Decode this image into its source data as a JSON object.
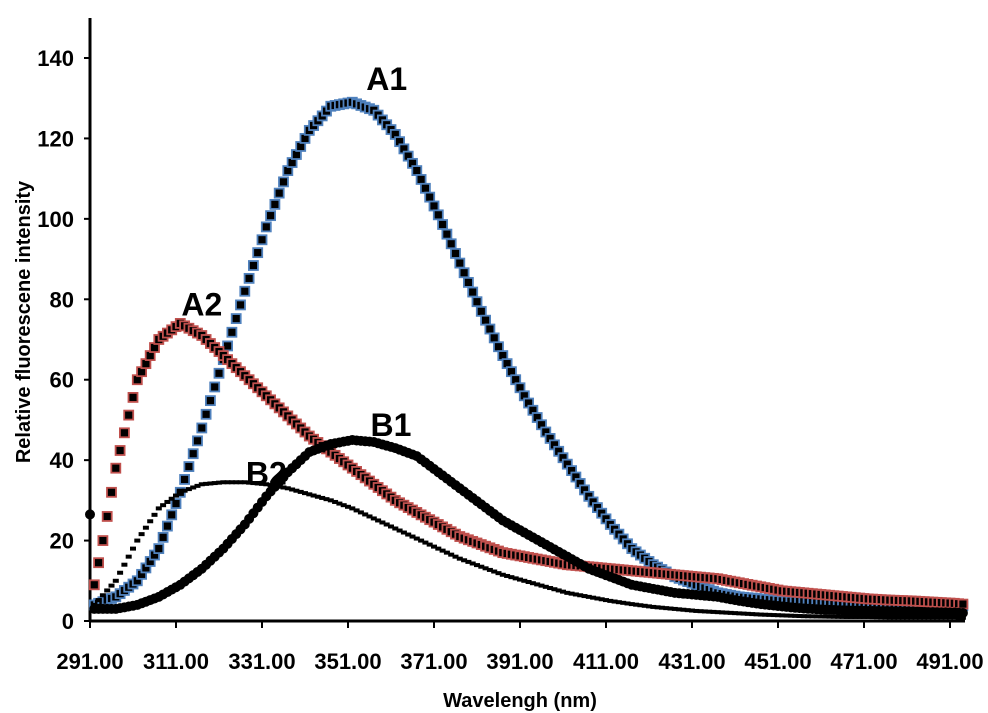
{
  "chart_data": {
    "type": "scatter",
    "title": "",
    "xlabel": "Wavelengh (nm)",
    "ylabel": "Relative fluorescene intensity",
    "xlim": [
      291.0,
      495.0
    ],
    "ylim": [
      0,
      150
    ],
    "x_ticks": [
      "291.00",
      "311.00",
      "331.00",
      "351.00",
      "371.00",
      "391.00",
      "411.00",
      "431.00",
      "451.00",
      "471.00",
      "491.00"
    ],
    "y_ticks": [
      "0",
      "20",
      "40",
      "60",
      "80",
      "100",
      "120",
      "140"
    ],
    "grid": false,
    "legend": "none",
    "series": [
      {
        "name": "A1",
        "marker": "square",
        "color": "#000000",
        "edge_color": "#4f81bd",
        "x": [
          292,
          297,
          302,
          307,
          312,
          317,
          322,
          327,
          332,
          337,
          342,
          347,
          352,
          357,
          362,
          367,
          372,
          377,
          382,
          387,
          392,
          397,
          402,
          407,
          412,
          417,
          422,
          427,
          432,
          437,
          442,
          447,
          452,
          457,
          462,
          467,
          472,
          477,
          482,
          487,
          492,
          494
        ],
        "y": [
          4,
          6,
          10,
          18,
          32,
          48,
          65,
          82,
          98,
          112,
          122,
          128,
          129,
          127,
          121,
          112,
          101,
          89,
          77,
          66,
          56,
          47,
          39,
          31,
          24,
          18,
          14,
          11,
          9,
          7,
          6,
          5.5,
          5,
          4.8,
          4.5,
          4.3,
          4.2,
          4.1,
          4,
          4,
          3.9,
          3.8
        ]
      },
      {
        "name": "A2",
        "marker": "square",
        "color": "#000000",
        "edge_color": "#c0504d",
        "x": [
          292,
          294,
          297,
          302,
          307,
          312,
          317,
          322,
          327,
          332,
          337,
          342,
          347,
          352,
          357,
          362,
          367,
          372,
          377,
          382,
          387,
          392,
          397,
          402,
          407,
          412,
          417,
          422,
          427,
          432,
          437,
          442,
          447,
          452,
          457,
          462,
          467,
          472,
          477,
          482,
          487,
          492,
          494
        ],
        "y": [
          9,
          20,
          38,
          60,
          70,
          74,
          71,
          66,
          61,
          56,
          51,
          46,
          42,
          38,
          34,
          30,
          27,
          24,
          21,
          19,
          17,
          16,
          15,
          14,
          13.5,
          13,
          12.5,
          12,
          11.5,
          11,
          10.5,
          9.5,
          8.5,
          7.5,
          7,
          6.5,
          6,
          5.5,
          5.2,
          5,
          4.7,
          4.4,
          4.2
        ]
      },
      {
        "name": "B1",
        "marker": "circle",
        "color": "#000000",
        "x": [
          292,
          297,
          302,
          307,
          312,
          317,
          322,
          327,
          332,
          337,
          342,
          347,
          352,
          357,
          362,
          367,
          372,
          377,
          382,
          387,
          392,
          397,
          402,
          407,
          412,
          417,
          422,
          427,
          432,
          437,
          442,
          447,
          452,
          457,
          462,
          467,
          472,
          477,
          482,
          487,
          492,
          494
        ],
        "y": [
          3,
          3,
          4,
          6,
          9,
          13,
          18,
          24,
          31,
          37,
          42,
          44,
          45,
          44.5,
          43,
          41,
          37,
          33,
          29,
          25,
          22,
          19,
          16,
          13,
          11,
          9,
          8,
          7,
          6.5,
          6,
          5,
          4.2,
          3.6,
          3.1,
          2.8,
          2.6,
          2.5,
          2.4,
          2.3,
          2.2,
          2.1,
          2.0
        ]
      },
      {
        "name": "B2",
        "marker": "dash",
        "color": "#000000",
        "x": [
          292,
          297,
          302,
          307,
          312,
          317,
          322,
          327,
          332,
          337,
          342,
          347,
          352,
          357,
          362,
          367,
          372,
          377,
          382,
          387,
          392,
          397,
          402,
          407,
          412,
          417,
          422,
          427,
          432,
          437,
          442,
          447,
          452,
          457,
          462,
          467,
          472,
          477,
          482,
          487,
          492,
          494
        ],
        "y": [
          4,
          10,
          20,
          28,
          32,
          34,
          34.5,
          34.5,
          34,
          33,
          31.5,
          30,
          28,
          25.5,
          23,
          20.5,
          18,
          15.5,
          13.5,
          11.5,
          10,
          8.5,
          7,
          6,
          5,
          4.2,
          3.5,
          3,
          2.5,
          2.2,
          1.9,
          1.6,
          1.4,
          1.2,
          1.1,
          1.0,
          1.0,
          0.9,
          0.9,
          0.9,
          0.9,
          0.8
        ]
      }
    ],
    "annotations": [
      {
        "text": "A1",
        "x": 360,
        "y": 132
      },
      {
        "text": "A2",
        "x": 317,
        "y": 76
      },
      {
        "text": "B1",
        "x": 361,
        "y": 46
      },
      {
        "text": "B2",
        "x": 332,
        "y": 34
      }
    ],
    "stray_points": [
      {
        "x": 291.0,
        "y": 26.5
      }
    ]
  }
}
